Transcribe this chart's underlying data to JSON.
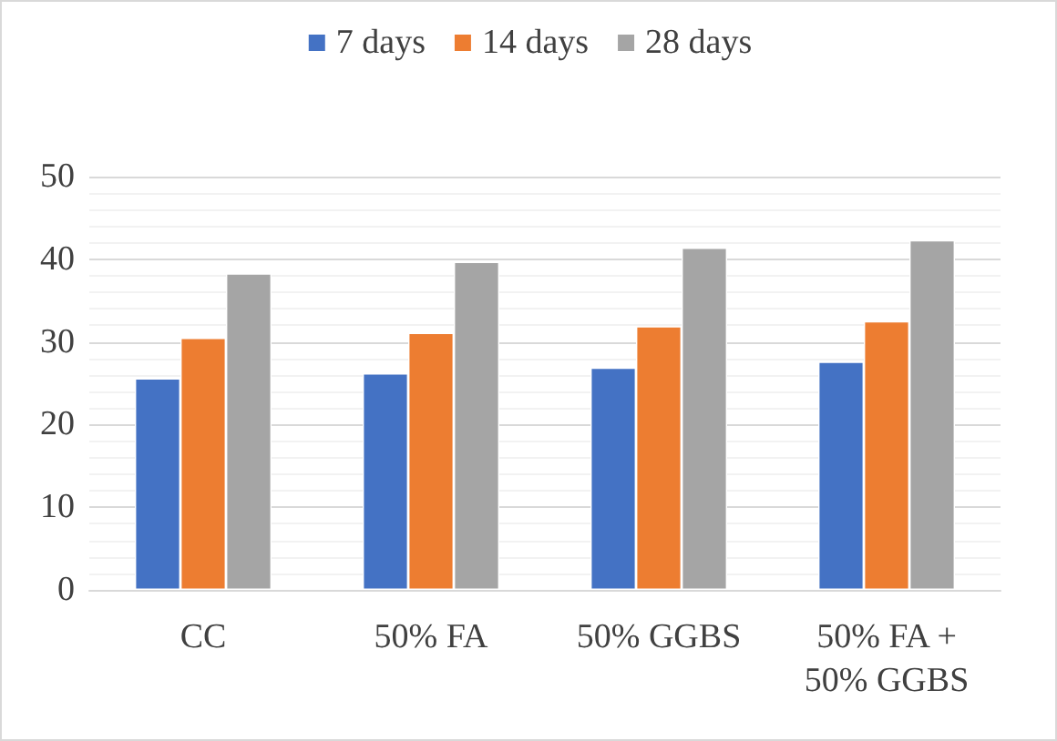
{
  "chart_data": {
    "type": "bar",
    "categories": [
      "CC",
      "50% FA",
      "50% GGBS",
      "50% FA +\n50% GGBS"
    ],
    "series": [
      {
        "name": "7 days",
        "color": "#4472c4",
        "values": [
          25.6,
          26.2,
          26.9,
          27.6
        ]
      },
      {
        "name": "14 days",
        "color": "#ed7d31",
        "values": [
          30.5,
          31.1,
          31.9,
          32.5
        ]
      },
      {
        "name": "28 days",
        "color": "#a5a5a5",
        "values": [
          38.3,
          39.7,
          41.4,
          42.3
        ]
      }
    ],
    "ylim": [
      0,
      50
    ],
    "yticks": [
      0,
      10,
      20,
      30,
      40,
      50
    ],
    "grid": true,
    "legend": "top"
  }
}
